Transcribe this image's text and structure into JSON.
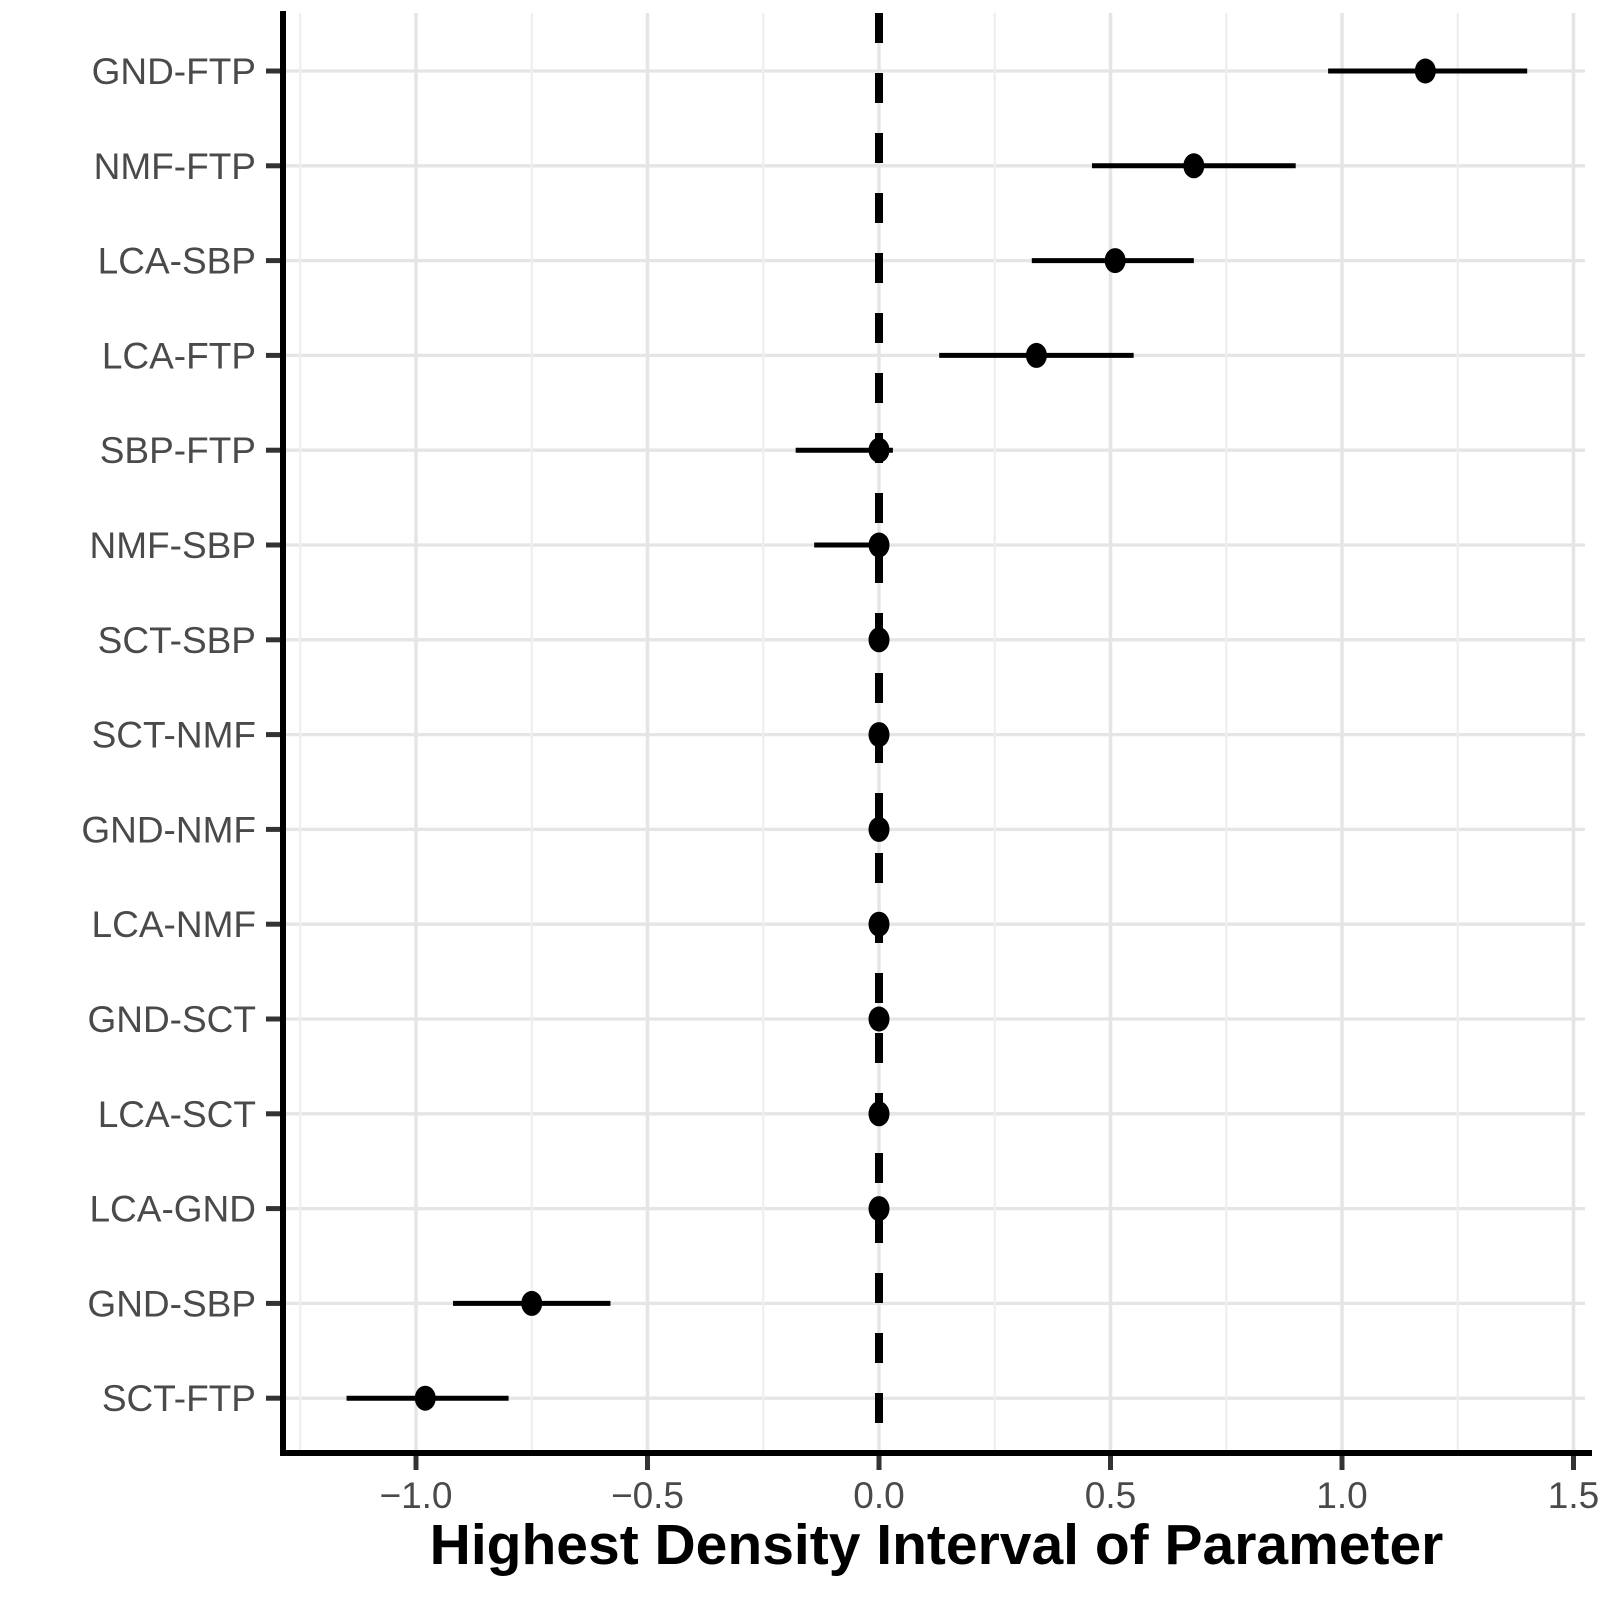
{
  "figure": {
    "kind": "forest-interval-plot",
    "background": "#ffffff"
  },
  "chart_data": {
    "type": "scatter",
    "subtype": "interval-forest-plot",
    "title": "",
    "xlabel": "Highest Density Interval of Parameter",
    "ylabel": "",
    "legend": "none",
    "grid": "on",
    "xlim": [
      -1.29,
      1.53
    ],
    "categories": [
      "GND-FTP",
      "NMF-FTP",
      "LCA-SBP",
      "LCA-FTP",
      "SBP-FTP",
      "NMF-SBP",
      "SCT-SBP",
      "SCT-NMF",
      "GND-NMF",
      "LCA-NMF",
      "GND-SCT",
      "LCA-SCT",
      "LCA-GND",
      "GND-SBP",
      "SCT-FTP"
    ],
    "points": [
      {
        "label": "GND-FTP",
        "value": 1.18,
        "lo": 0.97,
        "hi": 1.4
      },
      {
        "label": "NMF-FTP",
        "value": 0.68,
        "lo": 0.46,
        "hi": 0.9
      },
      {
        "label": "LCA-SBP",
        "value": 0.51,
        "lo": 0.33,
        "hi": 0.68
      },
      {
        "label": "LCA-FTP",
        "value": 0.34,
        "lo": 0.13,
        "hi": 0.55
      },
      {
        "label": "SBP-FTP",
        "value": 0.0,
        "lo": -0.18,
        "hi": 0.03
      },
      {
        "label": "NMF-SBP",
        "value": 0.0,
        "lo": -0.14,
        "hi": 0.02
      },
      {
        "label": "SCT-SBP",
        "value": 0.0,
        "lo": -0.02,
        "hi": 0.02
      },
      {
        "label": "SCT-NMF",
        "value": 0.0,
        "lo": -0.02,
        "hi": 0.02
      },
      {
        "label": "GND-NMF",
        "value": 0.0,
        "lo": -0.01,
        "hi": 0.01
      },
      {
        "label": "LCA-NMF",
        "value": 0.0,
        "lo": -0.02,
        "hi": 0.02
      },
      {
        "label": "GND-SCT",
        "value": 0.0,
        "lo": -0.02,
        "hi": 0.02
      },
      {
        "label": "LCA-SCT",
        "value": 0.0,
        "lo": -0.02,
        "hi": 0.02
      },
      {
        "label": "LCA-GND",
        "value": 0.0,
        "lo": -0.01,
        "hi": 0.01
      },
      {
        "label": "GND-SBP",
        "value": -0.75,
        "lo": -0.92,
        "hi": -0.58
      },
      {
        "label": "SCT-FTP",
        "value": -0.98,
        "lo": -1.15,
        "hi": -0.8
      }
    ],
    "x_ticks": [
      {
        "value": -1.0,
        "label": "−1.0"
      },
      {
        "value": -0.5,
        "label": "−0.5"
      },
      {
        "value": 0.0,
        "label": "0.0"
      },
      {
        "value": 0.5,
        "label": "0.5"
      },
      {
        "value": 1.0,
        "label": "1.0"
      },
      {
        "value": 1.5,
        "label": "1.5"
      }
    ],
    "x_minor_gridlines": [
      -1.25,
      -0.75,
      -0.25,
      0.25,
      0.75,
      1.25
    ],
    "reference_line": {
      "x": 0,
      "style": "dashed"
    },
    "colors": {
      "point": "#000000",
      "interval": "#000000",
      "reference_line": "#000000",
      "axis_line": "#000000",
      "tick_mark": "#333333",
      "axis_text": "#4a4a4a",
      "grid_major": "#e5e5e5",
      "grid_minor": "#efefef",
      "background": "#ffffff"
    }
  }
}
